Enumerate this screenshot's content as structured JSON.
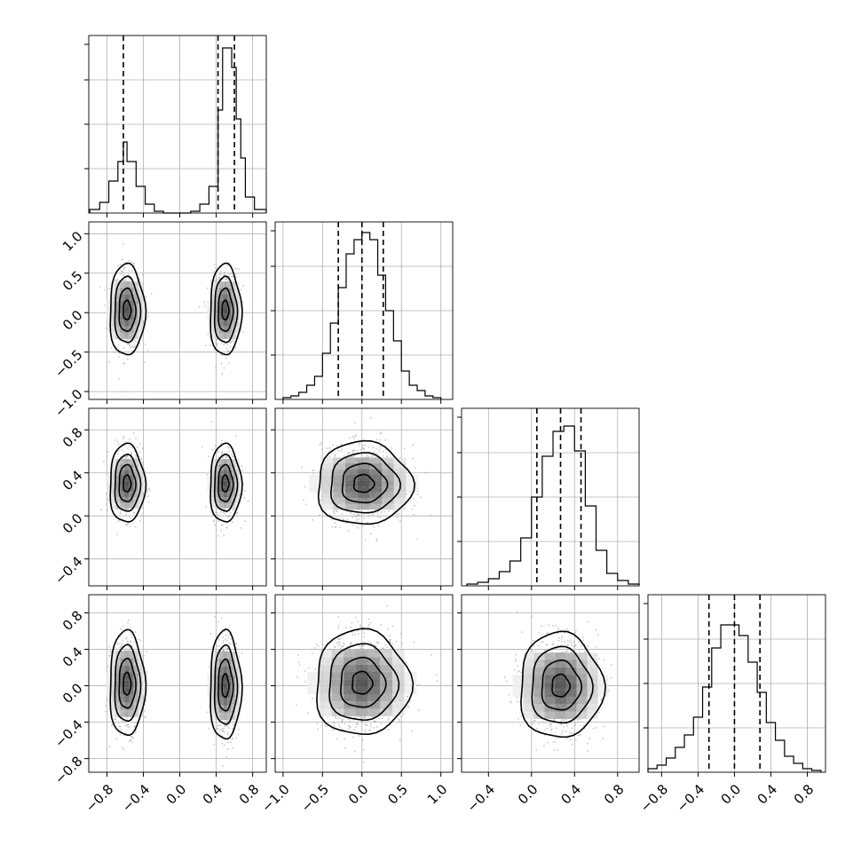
{
  "chart_data": {
    "type": "corner",
    "parameters": 4,
    "grid": true,
    "title": "",
    "axis_ranges": [
      [
        -1.0,
        0.95
      ],
      [
        -1.1,
        1.15
      ],
      [
        -0.65,
        1.0
      ],
      [
        -0.95,
        1.0
      ]
    ],
    "x_tick_labels": [
      [
        "−0.8",
        "−0.4",
        "0.0",
        "0.4",
        "0.8"
      ],
      [
        "−1.0",
        "−0.5",
        "0.0",
        "0.5",
        "1.0"
      ],
      [
        "−0.4",
        "0.0",
        "0.4",
        "0.8"
      ],
      [
        "−0.8",
        "−0.4",
        "0.0",
        "0.4",
        "0.8"
      ]
    ],
    "y_tick_labels": {
      "row2": [
        "1.0",
        "0.5",
        "0.0",
        "−0.5",
        "−1.0"
      ],
      "row3": [
        "0.8",
        "0.4",
        "0.0",
        "−0.4"
      ],
      "row4": [
        "0.8",
        "0.4",
        "0.0",
        "−0.4",
        "−0.8"
      ]
    },
    "marginals": [
      {
        "param": 1,
        "quantiles": [
          -0.62,
          0.42,
          0.6
        ],
        "bins": {
          "edges": [
            -0.99,
            -0.88,
            -0.78,
            -0.68,
            -0.62,
            -0.58,
            -0.48,
            -0.38,
            -0.28,
            -0.18,
            -0.08,
            0.02,
            0.12,
            0.22,
            0.32,
            0.42,
            0.47,
            0.52,
            0.57,
            0.62,
            0.67,
            0.72,
            0.82,
            0.95
          ],
          "counts": [
            0.02,
            0.06,
            0.18,
            0.29,
            0.4,
            0.29,
            0.15,
            0.05,
            0.01,
            0.0,
            0.0,
            0.0,
            0.01,
            0.05,
            0.15,
            0.58,
            0.93,
            0.93,
            0.82,
            0.53,
            0.31,
            0.09,
            0.02
          ]
        }
      },
      {
        "param": 2,
        "quantiles": [
          -0.3,
          0.0,
          0.27
        ],
        "bins": {
          "edges": [
            -1.0,
            -0.9,
            -0.8,
            -0.7,
            -0.6,
            -0.5,
            -0.4,
            -0.3,
            -0.2,
            -0.1,
            0.0,
            0.1,
            0.2,
            0.3,
            0.4,
            0.5,
            0.6,
            0.7,
            0.8,
            0.9,
            1.0
          ],
          "counts": [
            0.01,
            0.02,
            0.04,
            0.08,
            0.13,
            0.26,
            0.43,
            0.63,
            0.82,
            0.9,
            0.94,
            0.9,
            0.7,
            0.5,
            0.33,
            0.16,
            0.08,
            0.05,
            0.02,
            0.01
          ]
        }
      },
      {
        "param": 3,
        "quantiles": [
          0.05,
          0.27,
          0.46
        ],
        "bins": {
          "edges": [
            -0.6,
            -0.5,
            -0.4,
            -0.3,
            -0.2,
            -0.1,
            0.0,
            0.1,
            0.2,
            0.3,
            0.4,
            0.5,
            0.6,
            0.7,
            0.8,
            0.9,
            1.0
          ],
          "counts": [
            0.01,
            0.02,
            0.04,
            0.08,
            0.14,
            0.27,
            0.5,
            0.73,
            0.87,
            0.9,
            0.76,
            0.45,
            0.2,
            0.07,
            0.03,
            0.01
          ]
        }
      },
      {
        "param": 4,
        "quantiles": [
          -0.28,
          0.0,
          0.28
        ],
        "bins": {
          "edges": [
            -0.95,
            -0.85,
            -0.75,
            -0.65,
            -0.55,
            -0.45,
            -0.35,
            -0.25,
            -0.15,
            -0.05,
            0.05,
            0.15,
            0.25,
            0.35,
            0.45,
            0.55,
            0.65,
            0.75,
            0.85,
            0.95
          ],
          "counts": [
            0.02,
            0.04,
            0.08,
            0.14,
            0.21,
            0.31,
            0.48,
            0.7,
            0.83,
            0.83,
            0.77,
            0.62,
            0.45,
            0.28,
            0.18,
            0.09,
            0.05,
            0.02,
            0.01
          ]
        }
      }
    ],
    "joints": [
      {
        "row": 2,
        "col": 1,
        "modes": [
          {
            "x": -0.58,
            "y": 0.03,
            "sx": 0.09,
            "sy": 0.27
          },
          {
            "x": 0.5,
            "y": 0.03,
            "sx": 0.08,
            "sy": 0.27
          }
        ]
      },
      {
        "row": 3,
        "col": 1,
        "modes": [
          {
            "x": -0.58,
            "y": 0.3,
            "sx": 0.09,
            "sy": 0.17
          },
          {
            "x": 0.5,
            "y": 0.3,
            "sx": 0.08,
            "sy": 0.17
          }
        ]
      },
      {
        "row": 3,
        "col": 2,
        "modes": [
          {
            "x": 0.02,
            "y": 0.3,
            "sx": 0.28,
            "sy": 0.18
          }
        ]
      },
      {
        "row": 4,
        "col": 1,
        "modes": [
          {
            "x": -0.58,
            "y": 0.02,
            "sx": 0.09,
            "sy": 0.27
          },
          {
            "x": 0.5,
            "y": 0.0,
            "sx": 0.08,
            "sy": 0.28
          }
        ]
      },
      {
        "row": 4,
        "col": 2,
        "modes": [
          {
            "x": 0.0,
            "y": 0.03,
            "sx": 0.28,
            "sy": 0.27
          }
        ]
      },
      {
        "row": 4,
        "col": 3,
        "modes": [
          {
            "x": 0.27,
            "y": 0.0,
            "sx": 0.18,
            "sy": 0.27
          }
        ]
      }
    ],
    "contour_levels": [
      0.9,
      0.6,
      0.3,
      0.1
    ]
  }
}
